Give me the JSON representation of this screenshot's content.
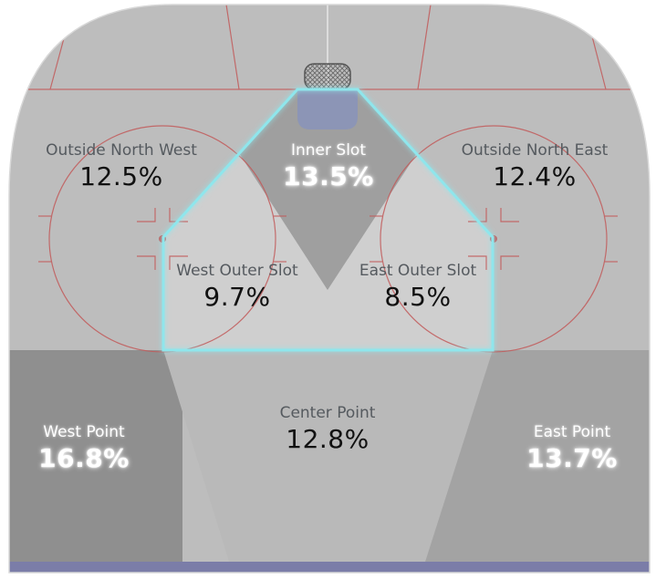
{
  "colors": {
    "rink_base": "#bdbdbd",
    "red_line": "#c25a5a",
    "slot_outline": "#8fe6ec",
    "crease": "#8a93b8",
    "bottom_bar": "#7b7da8",
    "west_point": "#8f8f8f",
    "east_point": "#a3a3a3",
    "center_point": "#b9b9b9",
    "inner_slot": "#9f9f9f",
    "outer_slot": "#cfcfcf"
  },
  "zones": {
    "outside_north_west": {
      "name": "Outside North West",
      "value": "12.5%"
    },
    "inner_slot": {
      "name": "Inner Slot",
      "value": "13.5%"
    },
    "outside_north_east": {
      "name": "Outside North East",
      "value": "12.4%"
    },
    "west_outer_slot": {
      "name": "West Outer Slot",
      "value": "9.7%"
    },
    "east_outer_slot": {
      "name": "East Outer Slot",
      "value": "8.5%"
    },
    "center_point": {
      "name": "Center Point",
      "value": "12.8%"
    },
    "west_point": {
      "name": "West Point",
      "value": "16.8%"
    },
    "east_point": {
      "name": "East Point",
      "value": "13.7%"
    }
  }
}
